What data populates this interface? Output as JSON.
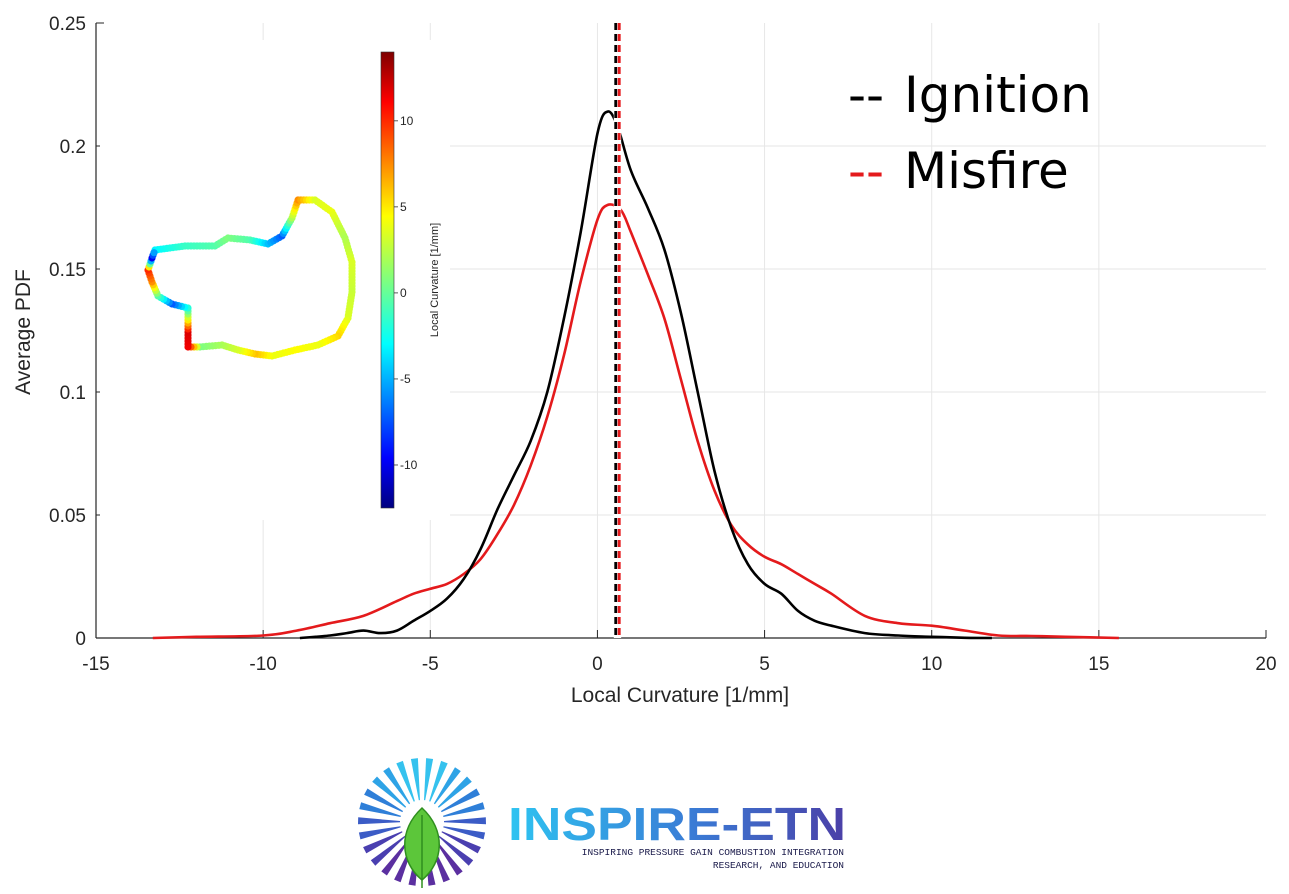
{
  "chart_data": {
    "type": "line",
    "xlabel": "Local Curvature [1/mm]",
    "ylabel": "Average PDF",
    "xlim": [
      -15,
      20
    ],
    "ylim": [
      0,
      0.25
    ],
    "x_ticks": [
      "-15",
      "-10",
      "-5",
      "0",
      "5",
      "10",
      "15",
      "20"
    ],
    "y_ticks": [
      "0",
      "0.05",
      "0.1",
      "0.15",
      "0.2",
      "0.25"
    ],
    "grid": true,
    "legend_position": "top-right",
    "series": [
      {
        "name": "Ignition",
        "color": "#000000",
        "x": [
          -8.9,
          -8,
          -7.5,
          -7,
          -6.5,
          -6,
          -5.5,
          -5,
          -4.5,
          -4,
          -3.5,
          -3,
          -2.5,
          -2,
          -1.5,
          -1,
          -0.5,
          0,
          0.3,
          0.6,
          1,
          1.5,
          2,
          2.5,
          3,
          3.5,
          4,
          4.5,
          5,
          5.5,
          6,
          6.5,
          7,
          8,
          9,
          10,
          11,
          11.8
        ],
        "y": [
          0.0,
          0.001,
          0.002,
          0.003,
          0.002,
          0.003,
          0.007,
          0.011,
          0.016,
          0.024,
          0.036,
          0.052,
          0.066,
          0.08,
          0.1,
          0.13,
          0.165,
          0.205,
          0.214,
          0.208,
          0.19,
          0.175,
          0.158,
          0.132,
          0.1,
          0.068,
          0.045,
          0.03,
          0.022,
          0.018,
          0.011,
          0.007,
          0.005,
          0.002,
          0.001,
          0.0005,
          0.0001,
          0.0
        ]
      },
      {
        "name": "Misfire",
        "color": "#e41a1c",
        "x": [
          -13.3,
          -12,
          -10,
          -9,
          -8,
          -7,
          -6,
          -5.5,
          -5,
          -4.5,
          -4,
          -3.5,
          -3,
          -2.5,
          -2,
          -1.5,
          -1,
          -0.5,
          0,
          0.3,
          0.7,
          1,
          1.5,
          2,
          2.5,
          3,
          3.5,
          4,
          4.5,
          5,
          5.5,
          6,
          6.5,
          7,
          8,
          9,
          10,
          11,
          12,
          13,
          14,
          15.6
        ],
        "y": [
          0.0,
          0.0005,
          0.001,
          0.003,
          0.006,
          0.009,
          0.015,
          0.018,
          0.02,
          0.022,
          0.026,
          0.032,
          0.042,
          0.054,
          0.07,
          0.09,
          0.115,
          0.145,
          0.17,
          0.176,
          0.174,
          0.165,
          0.148,
          0.13,
          0.105,
          0.08,
          0.06,
          0.046,
          0.038,
          0.033,
          0.03,
          0.026,
          0.022,
          0.018,
          0.009,
          0.006,
          0.005,
          0.003,
          0.001,
          0.0008,
          0.0005,
          0.0
        ]
      }
    ],
    "mean_lines": [
      {
        "series": "Ignition",
        "x": 0.55,
        "color": "#000000"
      },
      {
        "series": "Misfire",
        "x": 0.65,
        "color": "#e41a1c"
      }
    ]
  },
  "legend": {
    "ignition_dash": "--",
    "ignition_label": "Ignition",
    "misfire_dash": "--",
    "misfire_label": "Misfire"
  },
  "colorbar": {
    "label": "Local Curvature [1/mm]",
    "ticks": [
      "10",
      "5",
      "0",
      "-5",
      "-10"
    ],
    "tick_values": [
      10,
      5,
      0,
      -5,
      -10
    ],
    "range": [
      -12.5,
      14
    ]
  },
  "logo": {
    "title": "INSPIRE-ETN",
    "subtitle_line1": "INSPIRING PRESSURE GAIN COMBUSTION INTEGRATION",
    "subtitle_line2": "RESEARCH, AND EDUCATION"
  }
}
